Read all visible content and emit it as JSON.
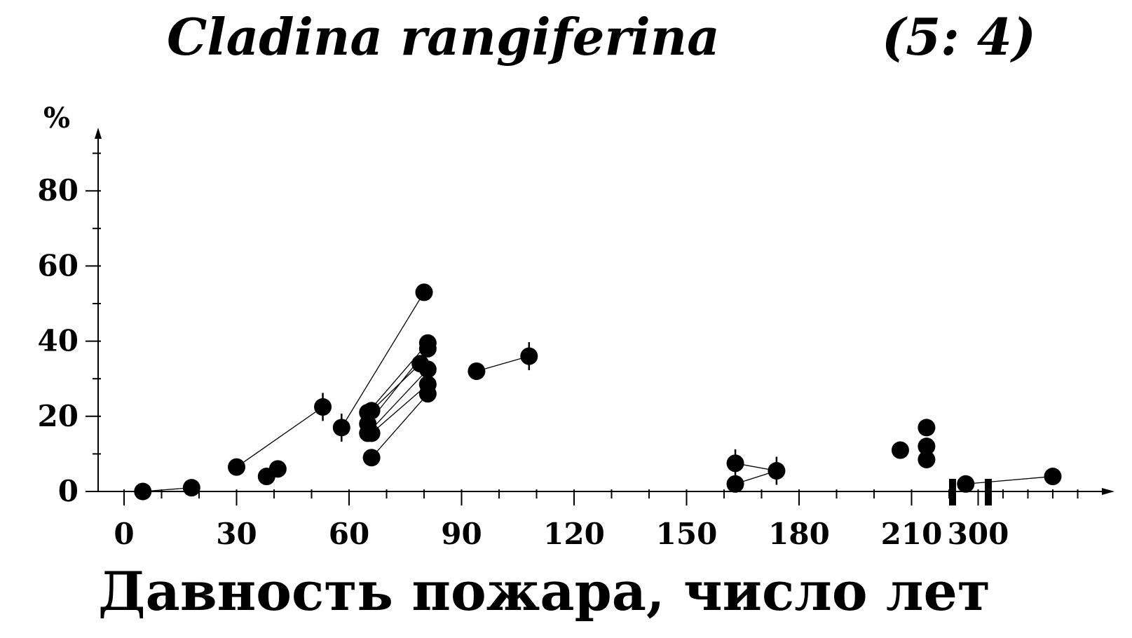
{
  "chart_data": {
    "type": "scatter",
    "title": "Cladina rangiferina",
    "title_code": "(5: 4)",
    "xlabel": "Давность пожара, число лет",
    "ylabel": "%",
    "ylim": [
      0,
      90
    ],
    "yticks": [
      0,
      20,
      40,
      60,
      80
    ],
    "xlim": [
      0,
      222
    ],
    "xticks": [
      0,
      30,
      60,
      90,
      120,
      150,
      180,
      210
    ],
    "x_break": {
      "after": 220,
      "resume": 290,
      "resume_ticks": [
        300
      ]
    },
    "grid": false,
    "points": [
      {
        "x": 5,
        "y": 0,
        "err": false
      },
      {
        "x": 18,
        "y": 1,
        "err": false
      },
      {
        "x": 30,
        "y": 6.5,
        "err": false
      },
      {
        "x": 38,
        "y": 4,
        "err": false
      },
      {
        "x": 41,
        "y": 6,
        "err": false
      },
      {
        "x": 53,
        "y": 22.5,
        "err": true
      },
      {
        "x": 58,
        "y": 17,
        "err": true
      },
      {
        "x": 65,
        "y": 21,
        "err": false
      },
      {
        "x": 65,
        "y": 18,
        "err": false
      },
      {
        "x": 65,
        "y": 15.5,
        "err": false
      },
      {
        "x": 66,
        "y": 21.5,
        "err": false
      },
      {
        "x": 66,
        "y": 15.5,
        "err": false
      },
      {
        "x": 66,
        "y": 9,
        "err": false
      },
      {
        "x": 80,
        "y": 53,
        "err": false
      },
      {
        "x": 81,
        "y": 39.5,
        "err": false
      },
      {
        "x": 81,
        "y": 38,
        "err": false
      },
      {
        "x": 79,
        "y": 34,
        "err": false
      },
      {
        "x": 81,
        "y": 32.5,
        "err": false
      },
      {
        "x": 81,
        "y": 28.5,
        "err": false
      },
      {
        "x": 81,
        "y": 26,
        "err": false
      },
      {
        "x": 94,
        "y": 32,
        "err": false
      },
      {
        "x": 108,
        "y": 36,
        "err": true
      },
      {
        "x": 163,
        "y": 7.5,
        "err": true
      },
      {
        "x": 163,
        "y": 2,
        "err": false
      },
      {
        "x": 174,
        "y": 5.5,
        "err": true
      },
      {
        "x": 207,
        "y": 11,
        "err": false
      },
      {
        "x": 214,
        "y": 17,
        "err": false
      },
      {
        "x": 214,
        "y": 12,
        "err": false
      },
      {
        "x": 214,
        "y": 8.5,
        "err": false
      },
      {
        "x": 295,
        "y": 2,
        "err": false
      },
      {
        "x": 330,
        "y": 4,
        "err": false
      }
    ],
    "connections": [
      [
        5,
        18,
        0,
        1
      ],
      [
        30,
        53,
        6.5,
        22.5
      ],
      [
        38,
        41,
        4,
        6
      ],
      [
        58,
        80,
        17,
        53
      ],
      [
        65,
        81,
        21,
        39.5
      ],
      [
        65,
        81,
        18,
        38
      ],
      [
        66,
        79,
        21.5,
        34
      ],
      [
        65,
        81,
        15.5,
        32.5
      ],
      [
        66,
        81,
        15.5,
        28.5
      ],
      [
        66,
        81,
        9,
        26
      ],
      [
        94,
        108,
        32,
        36
      ],
      [
        163,
        174,
        7.5,
        5.5
      ],
      [
        163,
        174,
        2,
        5.5
      ],
      [
        295,
        330,
        2,
        4
      ]
    ]
  }
}
